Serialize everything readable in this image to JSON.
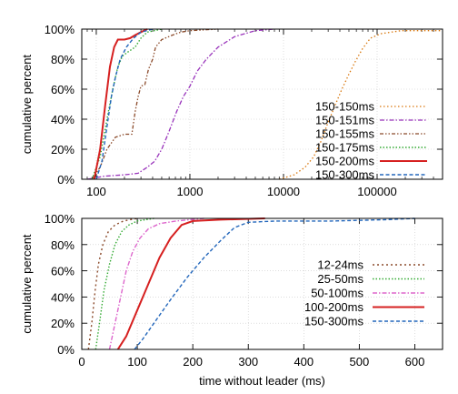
{
  "chart_data": [
    {
      "type": "line",
      "xscale": "log",
      "xlim": [
        70,
        500000
      ],
      "ylim": [
        0,
        100
      ],
      "ylabel": "cumulative percent",
      "xlabel": "",
      "grid": true,
      "legend_position": "bottom-right",
      "xticks": [
        {
          "v": 100,
          "label": "100"
        },
        {
          "v": 1000,
          "label": "1000"
        },
        {
          "v": 10000,
          "label": "10000"
        },
        {
          "v": 100000,
          "label": "100000"
        }
      ],
      "yticks": [
        {
          "v": 0,
          "label": "0%"
        },
        {
          "v": 20,
          "label": "20%"
        },
        {
          "v": 40,
          "label": "40%"
        },
        {
          "v": 60,
          "label": "60%"
        },
        {
          "v": 80,
          "label": "80%"
        },
        {
          "v": 100,
          "label": "100%"
        }
      ],
      "series": [
        {
          "name": "150-150ms",
          "color": "#d9780f",
          "dash": "1.5,2.5",
          "width": 1.3,
          "points": [
            [
              9000,
              0
            ],
            [
              13000,
              3
            ],
            [
              17000,
              8
            ],
            [
              21000,
              15
            ],
            [
              25000,
              25
            ],
            [
              30000,
              38
            ],
            [
              36000,
              50
            ],
            [
              42000,
              60
            ],
            [
              50000,
              70
            ],
            [
              58000,
              78
            ],
            [
              70000,
              87
            ],
            [
              85000,
              94
            ],
            [
              110000,
              97
            ],
            [
              180000,
              99
            ],
            [
              500000,
              99
            ]
          ]
        },
        {
          "name": "150-151ms",
          "color": "#9933bb",
          "dash": "5,2,1.5,2",
          "width": 1.3,
          "points": [
            [
              80,
              0
            ],
            [
              120,
              2
            ],
            [
              200,
              3
            ],
            [
              280,
              4
            ],
            [
              350,
              8
            ],
            [
              420,
              12
            ],
            [
              500,
              20
            ],
            [
              600,
              32
            ],
            [
              720,
              45
            ],
            [
              850,
              55
            ],
            [
              1000,
              62
            ],
            [
              1200,
              72
            ],
            [
              1500,
              80
            ],
            [
              2000,
              88
            ],
            [
              3000,
              95
            ],
            [
              5000,
              99
            ],
            [
              8000,
              100
            ]
          ]
        },
        {
          "name": "150-155ms",
          "color": "#8b4a2a",
          "dash": "4,2,1.5,2,1.5,2",
          "width": 1.3,
          "points": [
            [
              90,
              0
            ],
            [
              110,
              8
            ],
            [
              130,
              20
            ],
            [
              160,
              28
            ],
            [
              200,
              30
            ],
            [
              240,
              30
            ],
            [
              260,
              45
            ],
            [
              280,
              55
            ],
            [
              300,
              62
            ],
            [
              330,
              63
            ],
            [
              360,
              73
            ],
            [
              400,
              80
            ],
            [
              430,
              88
            ],
            [
              500,
              93
            ],
            [
              650,
              96
            ],
            [
              800,
              98
            ],
            [
              1000,
              99
            ],
            [
              2000,
              100
            ]
          ]
        },
        {
          "name": "150-175ms",
          "color": "#33aa33",
          "dash": "1.5,2",
          "width": 1.4,
          "points": [
            [
              90,
              0
            ],
            [
              110,
              15
            ],
            [
              130,
              40
            ],
            [
              150,
              60
            ],
            [
              170,
              75
            ],
            [
              190,
              82
            ],
            [
              220,
              85
            ],
            [
              260,
              88
            ],
            [
              300,
              94
            ],
            [
              350,
              98
            ],
            [
              500,
              100
            ]
          ]
        },
        {
          "name": "150-200ms",
          "color": "#d62020",
          "dash": "",
          "width": 2.0,
          "points": [
            [
              95,
              0
            ],
            [
              110,
              20
            ],
            [
              125,
              50
            ],
            [
              140,
              75
            ],
            [
              155,
              88
            ],
            [
              170,
              93
            ],
            [
              200,
              93
            ],
            [
              230,
              94
            ],
            [
              260,
              96
            ],
            [
              300,
              98
            ],
            [
              350,
              100
            ]
          ]
        },
        {
          "name": "150-300ms",
          "color": "#2266bb",
          "dash": "4,2.5",
          "width": 1.4,
          "points": [
            [
              100,
              0
            ],
            [
              115,
              12
            ],
            [
              130,
              35
            ],
            [
              145,
              55
            ],
            [
              160,
              68
            ],
            [
              180,
              80
            ],
            [
              210,
              88
            ],
            [
              250,
              94
            ],
            [
              300,
              98
            ],
            [
              400,
              100
            ]
          ]
        }
      ]
    },
    {
      "type": "line",
      "xscale": "linear",
      "xlim": [
        0,
        650
      ],
      "ylim": [
        0,
        100
      ],
      "ylabel": "cumulative percent",
      "xlabel": "time without leader (ms)",
      "grid": true,
      "legend_position": "bottom-right",
      "xticks": [
        {
          "v": 0,
          "label": "0"
        },
        {
          "v": 100,
          "label": "100"
        },
        {
          "v": 200,
          "label": "200"
        },
        {
          "v": 300,
          "label": "300"
        },
        {
          "v": 400,
          "label": "400"
        },
        {
          "v": 500,
          "label": "500"
        },
        {
          "v": 600,
          "label": "600"
        }
      ],
      "yticks": [
        {
          "v": 0,
          "label": "0%"
        },
        {
          "v": 20,
          "label": "20%"
        },
        {
          "v": 40,
          "label": "40%"
        },
        {
          "v": 60,
          "label": "60%"
        },
        {
          "v": 80,
          "label": "80%"
        },
        {
          "v": 100,
          "label": "100%"
        }
      ],
      "series": [
        {
          "name": "12-24ms",
          "color": "#8b4a2a",
          "dash": "2,3",
          "width": 1.4,
          "points": [
            [
              12,
              0
            ],
            [
              18,
              20
            ],
            [
              24,
              45
            ],
            [
              30,
              65
            ],
            [
              38,
              80
            ],
            [
              48,
              90
            ],
            [
              60,
              95
            ],
            [
              75,
              98
            ],
            [
              100,
              100
            ]
          ]
        },
        {
          "name": "25-50ms",
          "color": "#33aa33",
          "dash": "1.5,2",
          "width": 1.4,
          "points": [
            [
              25,
              0
            ],
            [
              32,
              20
            ],
            [
              40,
              45
            ],
            [
              50,
              65
            ],
            [
              60,
              80
            ],
            [
              72,
              90
            ],
            [
              85,
              95
            ],
            [
              100,
              98
            ],
            [
              130,
              100
            ]
          ]
        },
        {
          "name": "50-100ms",
          "color": "#dd66cc",
          "dash": "5,2,1.5,2",
          "width": 1.4,
          "points": [
            [
              50,
              0
            ],
            [
              60,
              20
            ],
            [
              70,
              40
            ],
            [
              80,
              60
            ],
            [
              92,
              75
            ],
            [
              105,
              85
            ],
            [
              120,
              92
            ],
            [
              140,
              96
            ],
            [
              170,
              98
            ],
            [
              220,
              100
            ]
          ]
        },
        {
          "name": "100-200ms",
          "color": "#d62020",
          "dash": "",
          "width": 2.0,
          "points": [
            [
              65,
              0
            ],
            [
              80,
              10
            ],
            [
              100,
              30
            ],
            [
              120,
              50
            ],
            [
              140,
              70
            ],
            [
              160,
              85
            ],
            [
              180,
              95
            ],
            [
              200,
              98
            ],
            [
              250,
              99
            ],
            [
              330,
              100
            ]
          ]
        },
        {
          "name": "150-300ms",
          "color": "#2266bb",
          "dash": "4,2.5",
          "width": 1.4,
          "points": [
            [
              95,
              0
            ],
            [
              110,
              8
            ],
            [
              130,
              20
            ],
            [
              160,
              38
            ],
            [
              190,
              55
            ],
            [
              220,
              70
            ],
            [
              250,
              83
            ],
            [
              275,
              93
            ],
            [
              300,
              97
            ],
            [
              350,
              98
            ],
            [
              450,
              98
            ],
            [
              550,
              99
            ],
            [
              600,
              100
            ]
          ]
        }
      ]
    }
  ]
}
